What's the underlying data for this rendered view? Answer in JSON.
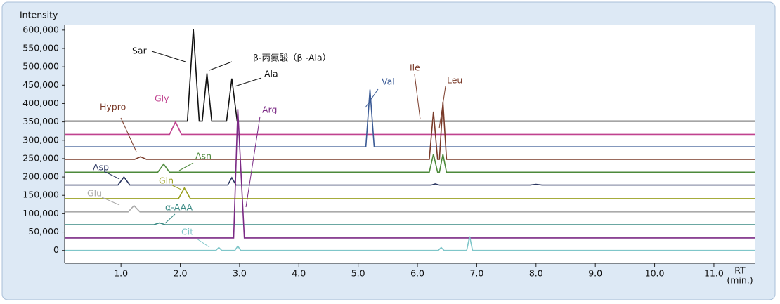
{
  "chart_data": {
    "type": "line",
    "ylabel": "Intensity",
    "xlabel": "RT",
    "xunit": "(min.)",
    "xlim": [
      0.05,
      11.7
    ],
    "ylim": [
      -35000,
      615000
    ],
    "xticks": [
      {
        "value": 1,
        "label": "1.0"
      },
      {
        "value": 2,
        "label": "2.0"
      },
      {
        "value": 3,
        "label": "3.0"
      },
      {
        "value": 4,
        "label": "4.0"
      },
      {
        "value": 5,
        "label": "5.0"
      },
      {
        "value": 6,
        "label": "6.0"
      },
      {
        "value": 7,
        "label": "7.0"
      },
      {
        "value": 8,
        "label": "8.0"
      },
      {
        "value": 9,
        "label": "9.0"
      },
      {
        "value": 10,
        "label": "10.0"
      },
      {
        "value": 11,
        "label": "11.0"
      }
    ],
    "yticks": [
      0,
      {
        "value": 50000,
        "label": "50,000"
      },
      {
        "value": 100000,
        "label": "100,000"
      },
      {
        "value": 150000,
        "label": "150,000"
      },
      {
        "value": 200000,
        "label": "200,000"
      },
      {
        "value": 250000,
        "label": "250,000"
      },
      {
        "value": 300000,
        "label": "300,000"
      },
      {
        "value": 350000,
        "label": "350,000"
      },
      {
        "value": 400000,
        "label": "400,000"
      },
      {
        "value": 450000,
        "label": "450,000"
      },
      {
        "value": 500000,
        "label": "500,000"
      },
      {
        "value": 550000,
        "label": "550,000"
      },
      {
        "value": 600000,
        "label": "600,000"
      }
    ],
    "series": [
      {
        "labels": [
          "Sar",
          "β-丙氨酸（β -Ala）",
          "Ala"
        ],
        "color": "#111111",
        "x": [
          0.05,
          2.12,
          2.22,
          2.32,
          2.37,
          2.45,
          2.53,
          2.78,
          2.87,
          2.96,
          11.7
        ],
        "values": [
          352000,
          352000,
          603000,
          352000,
          352000,
          482000,
          352000,
          352000,
          468000,
          352000,
          352000
        ]
      },
      {
        "labels": [
          "Gly"
        ],
        "color": "#c0428f",
        "x": [
          0.05,
          1.82,
          1.92,
          2.02,
          11.7
        ],
        "values": [
          316000,
          316000,
          350000,
          316000,
          316000
        ]
      },
      {
        "labels": [
          "Val"
        ],
        "color": "#3a5a95",
        "x": [
          0.05,
          5.13,
          5.2,
          5.27,
          11.7
        ],
        "values": [
          282000,
          282000,
          438000,
          282000,
          282000
        ]
      },
      {
        "labels": [
          "Hypro",
          "Ile",
          "Leu"
        ],
        "color": "#7a3b2a",
        "x": [
          0.05,
          1.23,
          1.33,
          1.43,
          6.2,
          6.27,
          6.34,
          6.37,
          6.43,
          6.49,
          11.7
        ],
        "values": [
          248000,
          248000,
          255000,
          248000,
          248000,
          378000,
          248000,
          248000,
          405000,
          248000,
          248000
        ]
      },
      {
        "labels": [
          "Asn"
        ],
        "color": "#4d8a3b",
        "x": [
          0.05,
          1.62,
          1.72,
          1.82,
          6.2,
          6.27,
          6.34,
          6.37,
          6.43,
          6.49,
          11.7
        ],
        "values": [
          213000,
          213000,
          235000,
          213000,
          213000,
          262000,
          213000,
          213000,
          262000,
          213000,
          213000
        ]
      },
      {
        "labels": [
          "Asp"
        ],
        "color": "#2a3560",
        "x": [
          0.05,
          0.95,
          1.05,
          1.15,
          2.8,
          2.87,
          2.94,
          6.23,
          6.3,
          6.37,
          7.9,
          8.0,
          8.1,
          11.7
        ],
        "values": [
          178000,
          178000,
          200000,
          178000,
          178000,
          198000,
          178000,
          178000,
          181000,
          178000,
          178000,
          180000,
          178000,
          178000
        ]
      },
      {
        "labels": [
          "Gln"
        ],
        "color": "#9aa020",
        "x": [
          0.05,
          1.97,
          2.07,
          2.17,
          11.7
        ],
        "values": [
          141000,
          141000,
          170000,
          141000,
          141000
        ]
      },
      {
        "labels": [
          "Glu"
        ],
        "color": "#aaaaaa",
        "x": [
          0.05,
          1.12,
          1.22,
          1.32,
          11.7
        ],
        "values": [
          105000,
          105000,
          122000,
          105000,
          105000
        ]
      },
      {
        "labels": [
          "α-AAA"
        ],
        "color": "#3a8a84",
        "x": [
          0.05,
          1.55,
          1.65,
          1.75,
          11.7
        ],
        "values": [
          70000,
          70000,
          75000,
          70000,
          70000
        ]
      },
      {
        "labels": [
          "Arg"
        ],
        "color": "#7b2a85",
        "x": [
          0.05,
          2.9,
          2.97,
          3.08,
          11.7
        ],
        "values": [
          34000,
          34000,
          385000,
          34000,
          34000
        ]
      },
      {
        "labels": [
          "Cit"
        ],
        "color": "#7fc6c9",
        "x": [
          0.05,
          2.6,
          2.65,
          2.7,
          2.92,
          2.97,
          3.02,
          6.35,
          6.4,
          6.45,
          6.83,
          6.88,
          6.93,
          11.7
        ],
        "values": [
          0,
          0,
          8000,
          0,
          0,
          12000,
          0,
          0,
          8000,
          0,
          0,
          38000,
          0,
          0
        ]
      }
    ]
  }
}
